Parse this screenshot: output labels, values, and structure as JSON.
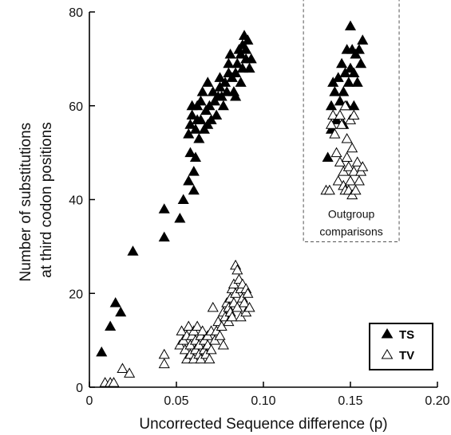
{
  "chart_data": {
    "type": "scatter",
    "title": "",
    "xlabel": "Uncorrected Sequence difference (p)",
    "ylabel": [
      "Number of substitutions",
      "at third codon positions"
    ],
    "xlim": [
      0,
      0.2
    ],
    "ylim": [
      0,
      80
    ],
    "xticks": [
      0,
      0.05,
      0.1,
      0.15,
      0.2
    ],
    "xtick_labels": [
      "0",
      "0.05",
      "0.10",
      "0.15",
      "0.20"
    ],
    "yticks": [
      0,
      20,
      40,
      60,
      80
    ],
    "ytick_labels": [
      "0",
      "20",
      "40",
      "60",
      "80"
    ],
    "grid": false,
    "legend_position": "bottom-right",
    "annotation": {
      "lines": [
        "Outgroup",
        "comparisons"
      ],
      "box_x": [
        0.123,
        0.178
      ],
      "box_y": [
        31,
        84
      ]
    },
    "series": [
      {
        "name": "TS",
        "marker": "filled-triangle",
        "color": "#000000",
        "points": [
          [
            0.007,
            7.5
          ],
          [
            0.012,
            13
          ],
          [
            0.015,
            18
          ],
          [
            0.018,
            16
          ],
          [
            0.025,
            29
          ],
          [
            0.043,
            32
          ],
          [
            0.043,
            38
          ],
          [
            0.052,
            36
          ],
          [
            0.054,
            40
          ],
          [
            0.057,
            44
          ],
          [
            0.058,
            50
          ],
          [
            0.057,
            54
          ],
          [
            0.058,
            56
          ],
          [
            0.059,
            58
          ],
          [
            0.059,
            60
          ],
          [
            0.06,
            42
          ],
          [
            0.06,
            46
          ],
          [
            0.061,
            49
          ],
          [
            0.061,
            55
          ],
          [
            0.062,
            57
          ],
          [
            0.062,
            60
          ],
          [
            0.063,
            53
          ],
          [
            0.064,
            57
          ],
          [
            0.064,
            61
          ],
          [
            0.065,
            63
          ],
          [
            0.066,
            55
          ],
          [
            0.067,
            59
          ],
          [
            0.068,
            56
          ],
          [
            0.068,
            65
          ],
          [
            0.069,
            60
          ],
          [
            0.07,
            57
          ],
          [
            0.071,
            63
          ],
          [
            0.072,
            61
          ],
          [
            0.073,
            58
          ],
          [
            0.074,
            62
          ],
          [
            0.075,
            64
          ],
          [
            0.075,
            66
          ],
          [
            0.076,
            62
          ],
          [
            0.077,
            60
          ],
          [
            0.078,
            65
          ],
          [
            0.079,
            63
          ],
          [
            0.08,
            67
          ],
          [
            0.08,
            69
          ],
          [
            0.081,
            71
          ],
          [
            0.082,
            66
          ],
          [
            0.083,
            63
          ],
          [
            0.084,
            62
          ],
          [
            0.084,
            67
          ],
          [
            0.085,
            69
          ],
          [
            0.086,
            72
          ],
          [
            0.087,
            71
          ],
          [
            0.087,
            65
          ],
          [
            0.088,
            73
          ],
          [
            0.088,
            68
          ],
          [
            0.089,
            75
          ],
          [
            0.09,
            70
          ],
          [
            0.09,
            72
          ],
          [
            0.091,
            74
          ],
          [
            0.092,
            68
          ],
          [
            0.093,
            70
          ],
          [
            0.137,
            49
          ],
          [
            0.139,
            55
          ],
          [
            0.139,
            60
          ],
          [
            0.14,
            65
          ],
          [
            0.141,
            63
          ],
          [
            0.142,
            57
          ],
          [
            0.143,
            66
          ],
          [
            0.144,
            61
          ],
          [
            0.145,
            69
          ],
          [
            0.146,
            56
          ],
          [
            0.146,
            63
          ],
          [
            0.147,
            67
          ],
          [
            0.148,
            60
          ],
          [
            0.148,
            72
          ],
          [
            0.149,
            65
          ],
          [
            0.15,
            77
          ],
          [
            0.15,
            68
          ],
          [
            0.151,
            72
          ],
          [
            0.152,
            60
          ],
          [
            0.152,
            67
          ],
          [
            0.153,
            71
          ],
          [
            0.154,
            65
          ],
          [
            0.155,
            72
          ],
          [
            0.156,
            69
          ],
          [
            0.157,
            74
          ]
        ]
      },
      {
        "name": "TV",
        "marker": "open-triangle",
        "color": "#000000",
        "points": [
          [
            0.009,
            1
          ],
          [
            0.012,
            1
          ],
          [
            0.014,
            1
          ],
          [
            0.019,
            4
          ],
          [
            0.023,
            3
          ],
          [
            0.043,
            5
          ],
          [
            0.043,
            7
          ],
          [
            0.052,
            9
          ],
          [
            0.053,
            12
          ],
          [
            0.054,
            10
          ],
          [
            0.055,
            8
          ],
          [
            0.056,
            11
          ],
          [
            0.056,
            6
          ],
          [
            0.057,
            13
          ],
          [
            0.058,
            9
          ],
          [
            0.058,
            7
          ],
          [
            0.059,
            11
          ],
          [
            0.06,
            12
          ],
          [
            0.06,
            6
          ],
          [
            0.061,
            8
          ],
          [
            0.061,
            10
          ],
          [
            0.062,
            13
          ],
          [
            0.063,
            9
          ],
          [
            0.063,
            7
          ],
          [
            0.064,
            11
          ],
          [
            0.064,
            6
          ],
          [
            0.065,
            12
          ],
          [
            0.066,
            8
          ],
          [
            0.066,
            10
          ],
          [
            0.067,
            7
          ],
          [
            0.068,
            11
          ],
          [
            0.068,
            9
          ],
          [
            0.069,
            6
          ],
          [
            0.07,
            12
          ],
          [
            0.07,
            8
          ],
          [
            0.071,
            17
          ],
          [
            0.072,
            10
          ],
          [
            0.073,
            12
          ],
          [
            0.074,
            14
          ],
          [
            0.075,
            11
          ],
          [
            0.076,
            13
          ],
          [
            0.077,
            16
          ],
          [
            0.077,
            9
          ],
          [
            0.078,
            15
          ],
          [
            0.079,
            18
          ],
          [
            0.08,
            14
          ],
          [
            0.08,
            17
          ],
          [
            0.081,
            19
          ],
          [
            0.081,
            16
          ],
          [
            0.082,
            21
          ],
          [
            0.082,
            15
          ],
          [
            0.083,
            22
          ],
          [
            0.083,
            18
          ],
          [
            0.084,
            26
          ],
          [
            0.084,
            20
          ],
          [
            0.085,
            25
          ],
          [
            0.085,
            17
          ],
          [
            0.086,
            23
          ],
          [
            0.087,
            21
          ],
          [
            0.087,
            15
          ],
          [
            0.088,
            19
          ],
          [
            0.088,
            22
          ],
          [
            0.089,
            18
          ],
          [
            0.09,
            16
          ],
          [
            0.09,
            21
          ],
          [
            0.091,
            20
          ],
          [
            0.092,
            17
          ],
          [
            0.136,
            42
          ],
          [
            0.138,
            42
          ],
          [
            0.139,
            56
          ],
          [
            0.14,
            58
          ],
          [
            0.141,
            54
          ],
          [
            0.142,
            50
          ],
          [
            0.143,
            44
          ],
          [
            0.144,
            58
          ],
          [
            0.144,
            48
          ],
          [
            0.145,
            56
          ],
          [
            0.146,
            43
          ],
          [
            0.146,
            46
          ],
          [
            0.147,
            60
          ],
          [
            0.147,
            42
          ],
          [
            0.148,
            53
          ],
          [
            0.148,
            49
          ],
          [
            0.149,
            42
          ],
          [
            0.149,
            47
          ],
          [
            0.15,
            57
          ],
          [
            0.15,
            44
          ],
          [
            0.151,
            51
          ],
          [
            0.151,
            41
          ],
          [
            0.152,
            46
          ],
          [
            0.152,
            58
          ],
          [
            0.153,
            42
          ],
          [
            0.154,
            48
          ],
          [
            0.155,
            44
          ],
          [
            0.156,
            46
          ],
          [
            0.157,
            47
          ]
        ]
      }
    ]
  }
}
